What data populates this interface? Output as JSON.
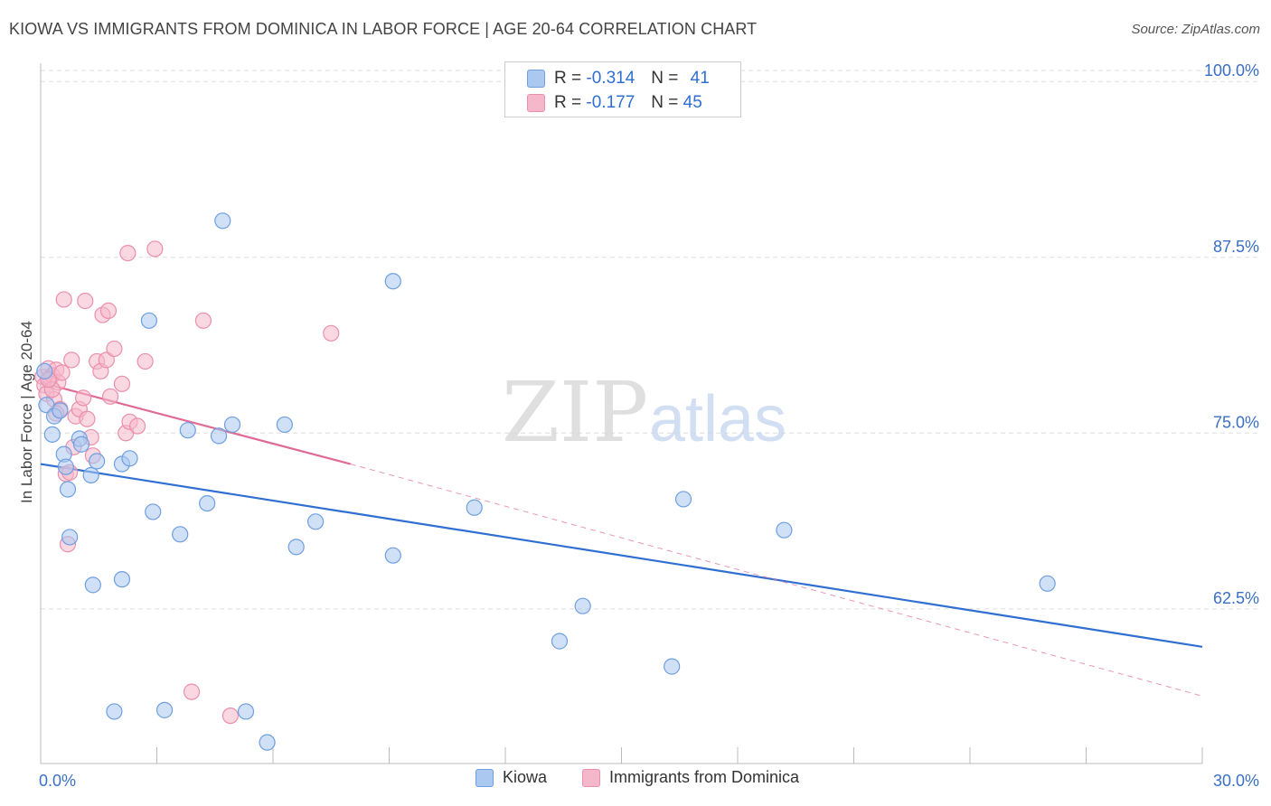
{
  "header": {
    "title": "KIOWA VS IMMIGRANTS FROM DOMINICA IN LABOR FORCE | AGE 20-64 CORRELATION CHART",
    "source": "Source: ZipAtlas.com"
  },
  "watermark": {
    "zip": "ZIP",
    "atlas": "atlas"
  },
  "colors": {
    "kiowa_fill": "#aac8f0",
    "kiowa_stroke": "#6f9fe0",
    "kiowa_line": "#2f6fd1",
    "dominica_fill": "#f5b8cb",
    "dominica_stroke": "#ea8fac",
    "dominica_line": "#e06a96",
    "tick_label": "#3a6fc4",
    "grid": "#dddddd"
  },
  "legend": {
    "kiowa": {
      "r_label": "R =",
      "r_value": "-0.314",
      "n_label": "N =",
      "n_value": "41"
    },
    "dominica": {
      "r_label": "R =",
      "r_value": "-0.177",
      "n_label": "N =",
      "n_value": "45"
    }
  },
  "chart_data": {
    "type": "scatter",
    "title": "KIOWA VS IMMIGRANTS FROM DOMINICA IN LABOR FORCE | AGE 20-64 CORRELATION CHART",
    "xlabel": "",
    "ylabel": "In Labor Force | Age 20-64",
    "xlim": [
      0,
      30
    ],
    "ylim": [
      51.5,
      101.3
    ],
    "x_tick_labels": [
      "0.0%",
      "30.0%"
    ],
    "y_ticks": [
      62.5,
      75.0,
      87.5,
      100.0
    ],
    "y_tick_labels": [
      "62.5%",
      "75.0%",
      "87.5%",
      "100.0%"
    ],
    "grid": true,
    "legend_position": "top-center",
    "series": [
      {
        "name": "Kiowa",
        "r": -0.314,
        "n": 41,
        "trend": {
          "x": [
            0,
            30
          ],
          "y": [
            72.8,
            59.8
          ]
        },
        "points": [
          [
            0.1,
            79.4
          ],
          [
            0.15,
            77.0
          ],
          [
            0.35,
            76.2
          ],
          [
            0.5,
            76.6
          ],
          [
            0.6,
            73.5
          ],
          [
            0.65,
            72.6
          ],
          [
            0.7,
            71.0
          ],
          [
            0.75,
            67.6
          ],
          [
            1.0,
            74.6
          ],
          [
            1.05,
            74.2
          ],
          [
            1.3,
            72.0
          ],
          [
            1.45,
            73.0
          ],
          [
            1.35,
            64.2
          ],
          [
            2.1,
            72.8
          ],
          [
            2.3,
            73.2
          ],
          [
            2.1,
            64.6
          ],
          [
            2.8,
            83.0
          ],
          [
            2.9,
            69.4
          ],
          [
            3.6,
            67.8
          ],
          [
            3.8,
            75.2
          ],
          [
            4.3,
            70.0
          ],
          [
            4.6,
            74.8
          ],
          [
            4.7,
            90.1
          ],
          [
            4.95,
            75.6
          ],
          [
            6.3,
            75.6
          ],
          [
            6.6,
            66.9
          ],
          [
            7.1,
            68.7
          ],
          [
            9.1,
            85.8
          ],
          [
            9.1,
            66.3
          ],
          [
            11.2,
            69.7
          ],
          [
            13.4,
            60.2
          ],
          [
            14.0,
            62.7
          ],
          [
            16.3,
            58.4
          ],
          [
            16.6,
            70.3
          ],
          [
            19.2,
            68.1
          ],
          [
            26.0,
            64.3
          ],
          [
            1.9,
            55.2
          ],
          [
            3.2,
            55.3
          ],
          [
            5.3,
            55.2
          ],
          [
            5.85,
            53.0
          ],
          [
            0.3,
            74.9
          ]
        ]
      },
      {
        "name": "Immigrants from Dominica",
        "r": -0.177,
        "n": 45,
        "trend": {
          "x": [
            0,
            8.0
          ],
          "y": [
            78.6,
            72.8
          ]
        },
        "trend_extension": {
          "x": [
            8.0,
            30
          ],
          "y": [
            72.8,
            56.3
          ]
        },
        "points": [
          [
            0.05,
            79.0
          ],
          [
            0.1,
            78.4
          ],
          [
            0.15,
            77.8
          ],
          [
            0.2,
            79.6
          ],
          [
            0.25,
            78.9
          ],
          [
            0.3,
            79.1
          ],
          [
            0.35,
            77.4
          ],
          [
            0.4,
            79.5
          ],
          [
            0.45,
            78.6
          ],
          [
            0.5,
            76.7
          ],
          [
            0.6,
            84.5
          ],
          [
            0.65,
            72.1
          ],
          [
            0.7,
            67.1
          ],
          [
            0.75,
            72.2
          ],
          [
            0.8,
            80.2
          ],
          [
            0.9,
            76.2
          ],
          [
            1.0,
            76.7
          ],
          [
            1.1,
            77.5
          ],
          [
            1.15,
            84.4
          ],
          [
            1.3,
            74.7
          ],
          [
            1.35,
            73.4
          ],
          [
            1.45,
            80.1
          ],
          [
            1.55,
            79.4
          ],
          [
            1.6,
            83.4
          ],
          [
            1.7,
            80.2
          ],
          [
            1.75,
            83.7
          ],
          [
            1.8,
            77.6
          ],
          [
            1.9,
            81.0
          ],
          [
            2.1,
            78.5
          ],
          [
            2.2,
            75.0
          ],
          [
            2.3,
            75.8
          ],
          [
            2.5,
            75.5
          ],
          [
            2.25,
            87.8
          ],
          [
            2.7,
            80.1
          ],
          [
            2.95,
            88.1
          ],
          [
            3.9,
            56.6
          ],
          [
            4.2,
            83.0
          ],
          [
            4.9,
            54.9
          ],
          [
            7.5,
            82.1
          ],
          [
            0.3,
            78.1
          ],
          [
            0.55,
            79.3
          ],
          [
            0.85,
            74.0
          ],
          [
            1.2,
            76.0
          ],
          [
            0.4,
            76.4
          ],
          [
            0.2,
            78.8
          ]
        ]
      }
    ]
  },
  "bottom_legend": {
    "kiowa_label": "Kiowa",
    "dominica_label": "Immigrants from Dominica"
  }
}
